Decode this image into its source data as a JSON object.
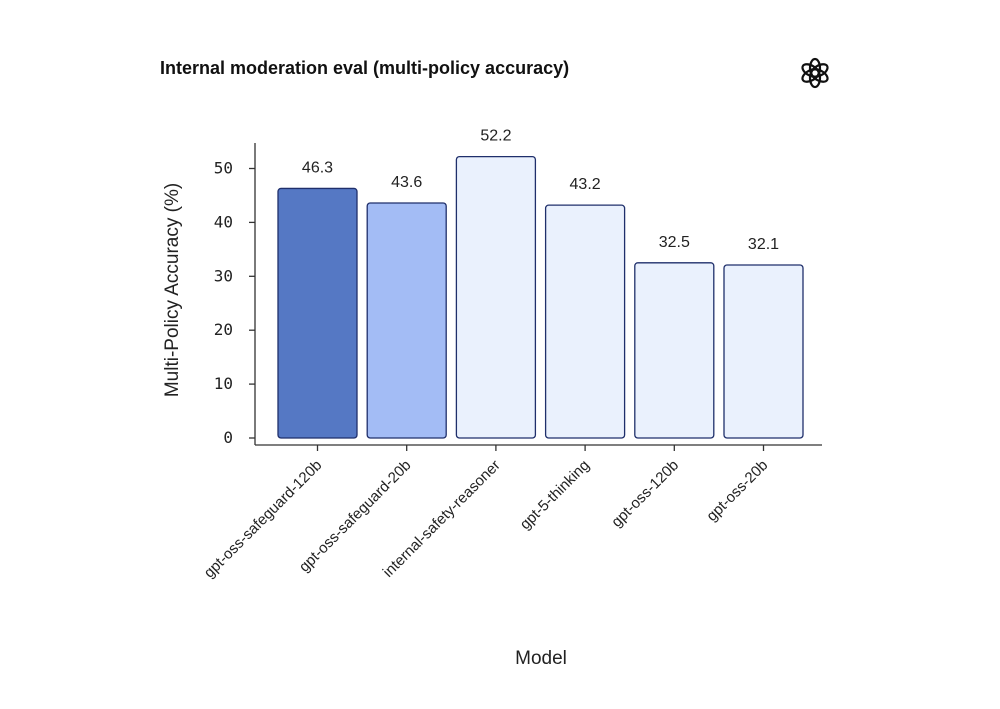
{
  "chart_data": {
    "type": "bar",
    "title": "Internal moderation eval (multi-policy accuracy)",
    "xlabel": "Model",
    "ylabel": "Multi-Policy Accuracy (%)",
    "categories": [
      "gpt-oss-safeguard-120b",
      "gpt-oss-safeguard-20b",
      "internal-safety-reasoner",
      "gpt-5-thinking",
      "gpt-oss-120b",
      "gpt-oss-20b"
    ],
    "values": [
      46.3,
      43.6,
      52.2,
      43.2,
      32.5,
      32.1
    ],
    "data_labels": [
      "46.3",
      "43.6",
      "52.2",
      "43.2",
      "32.5",
      "32.1"
    ],
    "colors": [
      "#5578c4",
      "#a3bcf5",
      "#eaf1fd",
      "#eaf1fd",
      "#eaf1fd",
      "#eaf1fd"
    ],
    "edge_color": "#1f2f6b",
    "yticks": [
      0,
      10,
      20,
      30,
      40,
      50
    ],
    "ylim": [
      0,
      55
    ],
    "grid": false,
    "legend": "none"
  },
  "logo": {
    "icon": "openai-logo-icon"
  }
}
